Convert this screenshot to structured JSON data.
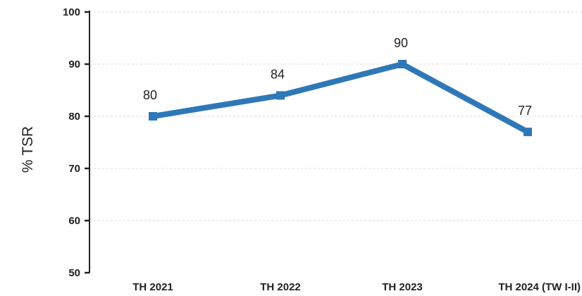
{
  "chart_data": {
    "type": "line",
    "title": "",
    "xlabel": "",
    "ylabel": "% TSR",
    "categories": [
      "TH 2021",
      "TH 2022",
      "TH 2023",
      "TH 2024 (TW I-II)"
    ],
    "series": [
      {
        "values": [
          80,
          84,
          90,
          77
        ]
      }
    ],
    "data_labels": [
      "80",
      "84",
      "90",
      "77"
    ],
    "ylim": [
      50,
      100
    ],
    "yticks": [
      50,
      60,
      70,
      80,
      90,
      100
    ],
    "ytick_labels": [
      "50",
      "60",
      "70",
      "80",
      "90",
      "100"
    ],
    "grid": true,
    "legend": "none",
    "line_color": "#2f78b8",
    "grid_color": "#dddddd",
    "axis_color": "#222222"
  }
}
